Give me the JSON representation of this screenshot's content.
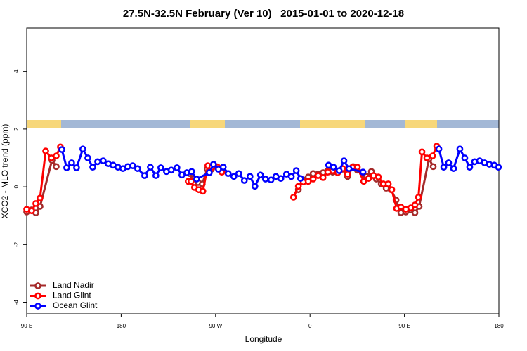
{
  "chart_data": {
    "type": "line",
    "title": "27.5N-32.5N February (Ver 10)   2015-01-01 to 2020-12-18",
    "xlabel": "Longitude",
    "ylabel": "XCO2 - MLO trend (ppm)",
    "xlim": [
      90,
      540
    ],
    "ylim": [
      -4.4,
      5.5
    ],
    "xticks": [
      {
        "value": 90,
        "label": "90 E"
      },
      180,
      {
        "value": 270,
        "label": "90 W"
      },
      {
        "value": 360,
        "label": "0"
      },
      {
        "value": 450,
        "label": "90 E"
      },
      {
        "value": 540,
        "label": "180"
      }
    ],
    "yticks": [
      -4,
      -2,
      0,
      2,
      4
    ],
    "legend": "bottomleft",
    "series": [
      {
        "name": "Land Nadir",
        "color": "#a52a2a",
        "x": [
          90.0,
          94.7,
          98.7,
          102.7,
          114.1,
          118.1,
          null,
          245.2,
          248.6,
          253.3,
          257.3,
          262.0,
          266.0,
          270.7,
          274.0,
          null,
          348.9,
          353.6,
          358.3,
          363.0,
          367.7,
          372.4,
          377.0,
          381.7,
          386.4,
          391.1,
          395.8,
          401.1,
          405.1,
          409.8,
          413.8,
          418.5,
          423.2,
          427.9,
          432.6,
          437.3,
          442.0,
          446.6,
          451.3,
          456.0,
          460.0,
          464.0,
          473.4,
          477.4
        ],
        "values": [
          -0.87,
          -0.8,
          -0.9,
          -0.68,
          0.92,
          0.7,
          null,
          0.46,
          0.27,
          0.15,
          0.1,
          0.61,
          0.61,
          0.7,
          0.63,
          null,
          -0.1,
          0.24,
          0.34,
          0.46,
          0.44,
          0.49,
          0.56,
          0.51,
          0.51,
          0.61,
          0.36,
          0.7,
          0.58,
          0.49,
          0.36,
          0.53,
          0.27,
          0.1,
          -0.05,
          -0.1,
          -0.46,
          -0.9,
          -0.87,
          -0.8,
          -0.9,
          -0.68,
          0.97,
          0.7
        ]
      },
      {
        "name": "Land Glint",
        "color": "#ff0000",
        "x": [
          90.0,
          94.7,
          98.7,
          102.7,
          108.1,
          113.4,
          118.1,
          122.1,
          null,
          243.9,
          246.6,
          249.9,
          253.9,
          257.9,
          262.6,
          266.6,
          272.0,
          276.0,
          null,
          344.3,
          348.9,
          353.6,
          358.3,
          363.0,
          367.7,
          372.4,
          377.0,
          381.7,
          386.4,
          391.1,
          395.8,
          400.5,
          405.1,
          411.2,
          415.8,
          420.5,
          425.2,
          429.9,
          434.6,
          437.9,
          442.6,
          446.6,
          451.3,
          456.0,
          460.0,
          463.4,
          466.7,
          471.4,
          476.8,
          480.8
        ],
        "values": [
          -0.78,
          -0.83,
          -0.58,
          -0.39,
          1.24,
          1.0,
          1.07,
          1.38,
          null,
          0.19,
          0.19,
          -0.02,
          -0.1,
          -0.15,
          0.73,
          0.68,
          0.68,
          0.51,
          null,
          -0.36,
          0.02,
          0.17,
          0.19,
          0.27,
          0.39,
          0.32,
          0.51,
          0.56,
          0.49,
          0.63,
          0.44,
          0.68,
          0.68,
          0.19,
          0.29,
          0.39,
          0.34,
          0.1,
          0.1,
          -0.1,
          -0.75,
          -0.7,
          -0.78,
          -0.73,
          -0.63,
          -0.36,
          1.21,
          1.0,
          1.07,
          1.41
        ]
      },
      {
        "name": "Ocean Glint",
        "color": "#0000ff",
        "x": [
          123.5,
          128.1,
          132.8,
          137.5,
          143.5,
          148.2,
          152.9,
          157.6,
          162.9,
          167.6,
          172.3,
          177.0,
          181.7,
          186.4,
          191.0,
          195.7,
          202.4,
          207.8,
          213.1,
          217.8,
          223.2,
          227.8,
          233.2,
          237.9,
          242.6,
          247.2,
          251.9,
          264.0,
          268.0,
          272.7,
          277.3,
          282.0,
          287.4,
          292.1,
          297.4,
          302.8,
          307.5,
          312.8,
          317.5,
          322.8,
          327.5,
          332.2,
          337.6,
          342.2,
          346.9,
          351.0,
          null,
          377.7,
          382.4,
          387.8,
          392.4,
          397.1,
          410.5,
          null,
          482.8,
          487.5,
          492.1,
          496.8,
          502.8,
          507.5,
          512.2,
          516.9,
          521.6,
          526.3,
          530.9,
          535.6,
          539.6
        ],
        "values": [
          1.29,
          0.66,
          0.83,
          0.66,
          1.31,
          1.0,
          0.68,
          0.87,
          0.9,
          0.8,
          0.75,
          0.68,
          0.63,
          0.7,
          0.73,
          0.63,
          0.39,
          0.68,
          0.39,
          0.66,
          0.53,
          0.58,
          0.66,
          0.41,
          0.49,
          0.53,
          0.27,
          0.49,
          0.78,
          0.61,
          0.68,
          0.46,
          0.36,
          0.46,
          0.22,
          0.36,
          0.02,
          0.41,
          0.27,
          0.24,
          0.36,
          0.29,
          0.44,
          0.36,
          0.56,
          0.29,
          null,
          0.75,
          0.68,
          0.56,
          0.9,
          0.63,
          0.51,
          null,
          1.31,
          0.68,
          0.83,
          0.63,
          1.31,
          1.0,
          0.68,
          0.87,
          0.9,
          0.83,
          0.78,
          0.75,
          0.68
        ]
      }
    ]
  }
}
